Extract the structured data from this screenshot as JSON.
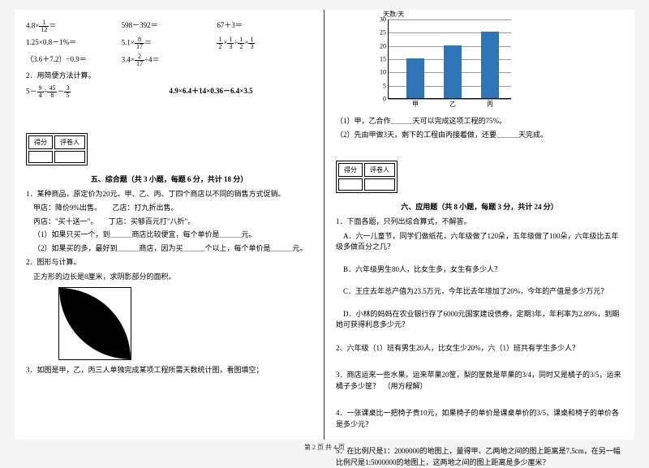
{
  "left": {
    "row1": {
      "a_pre": "4.8×",
      "a_num": "1",
      "a_den": "12",
      "a_post": "＝",
      "b": "598－392＝",
      "c": "67＋3＝"
    },
    "row2": {
      "a": "1.25×0.8－1%＝",
      "b_pre": "5.1×",
      "b_num": "8",
      "b_den": "17",
      "b_post": "＝",
      "c_n1": "1",
      "c_d1": "2",
      "c_n2": "1",
      "c_d2": "3",
      "c_n3": "1",
      "c_d3": "2",
      "c_n4": "1",
      "c_d4": "3"
    },
    "row3": {
      "a": "（3.6＋7.2）÷0.9＝",
      "b_pre": "3.4×",
      "b_num": "2",
      "b_den": "17",
      "b_post": "÷4＝"
    },
    "calc2_title": "2．用简便方法计算。",
    "calc2_a_pre": "5－",
    "calc2_a_n1": "9",
    "calc2_a_d1": "4",
    "calc2_a_mid": "÷",
    "calc2_a_n2": "45",
    "calc2_a_d2": "8",
    "calc2_a_end": "－",
    "calc2_a_n3": "3",
    "calc2_a_d3": "5",
    "calc2_b": "4.9×6.4＋14×0.36－6.4×3.5",
    "score_l": "得分",
    "score_r": "评卷人",
    "sec5_title": "五、综合题（共 3 小题，每题 6 分，共计 18 分）",
    "q1": "1．某种商品，原定价为20元。甲、乙、丙、丁四个商店以不同的销售方式促销。",
    "q1_a": "甲店：降价9%出售。　　乙店：打九折出售。",
    "q1_b": "丙店：\"买十送一\"。　　丁店：买够百元打\"八折\"。",
    "q1_1": "（1）如果只买一个，到＿＿＿商店比较便宜，每个单价是＿＿＿元。",
    "q1_2": "（2）如果买的多，最好到＿＿＿商店，因为买＿＿＿个以上，每个单价是＿＿＿元。",
    "q2": "2．图形与计算。",
    "q2_a": "正方形的边长是8厘米，求阴影部分的面积。",
    "q3": "3．如图是甲，乙，丙三人单独完成某项工程所需天数统计图，看图填空；",
    "figure": {
      "bg": "#ffffff",
      "fg": "#000000"
    }
  },
  "right": {
    "chart": {
      "ylabel": "天数/天",
      "yticks": [
        0,
        5,
        10,
        15,
        20,
        25,
        30
      ],
      "ymax": 30,
      "bars": [
        {
          "label": "甲",
          "value": 15,
          "x": 22,
          "color": "#2e75b6"
        },
        {
          "label": "乙",
          "value": 20,
          "x": 68,
          "color": "#2e75b6"
        },
        {
          "label": "丙",
          "value": 25,
          "x": 114,
          "color": "#2e75b6"
        }
      ],
      "grid_color": "#999999"
    },
    "c1": "（1）甲，乙合作＿＿＿天可以完成这项工程的75%。",
    "c2": "（2）先由甲做3天，剩下的工程由丙接着做，还要＿＿＿天完成。",
    "score_l": "得分",
    "score_r": "评卷人",
    "sec6_title": "六、应用题（共 8 小题，每题 3 分，共计 24 分）",
    "p1": "1．下面各题，只列出综合算式，不解答。",
    "p1a": "A．六一儿童节，同学们做纸花，六年级做了120朵，五年级做了100朵，六年级比五年级多做百分之几？",
    "p1b": "B．六年级男生80人，比女生多，女生有多少人？",
    "p1c": "C．王庄去年总产值为23.5万元，今年比去年增加了20%，今年的产值是多少万元？",
    "p1d": "D．小林的妈妈在农业银行存了6000元国家建设债券，定期3年，年利率为2.89%，到期她可获得利息多少元？",
    "p2": "2、六年级（1）班有男生20人，比女生少20%，六（1）班共有学生多少人？",
    "p3": "3．商店运来一些水果，运来苹果20筐，梨的筐数是苹果的3/4，同时又是橘子的3/5，运来橘子多少筐？　（用方程解）",
    "p4": "4．一张课桌比一把椅子贵10元，如果椅子的单价是课桌单价的3/5，课桌和椅子的单价各是多少元？",
    "p5": "5．在比例尺是1：2000000的地图上，量得甲、乙两地之间的图上距离是7.5cm，在另一幅比例尺是1:5000000的地图上，这两地之间的图上距离是多少厘米？"
  },
  "pager": "第 2 页 共 4 页"
}
